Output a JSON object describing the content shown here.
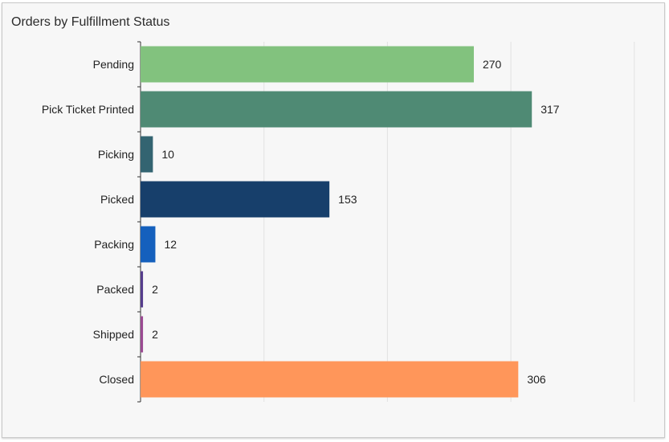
{
  "chart_data": {
    "type": "bar",
    "orientation": "horizontal",
    "title": "Orders by Fulfillment Status",
    "xlabel": "",
    "ylabel": "",
    "xlim": [
      0,
      400
    ],
    "grid": true,
    "legend": "none",
    "categories": [
      "Pending",
      "Pick Ticket Printed",
      "Picking",
      "Picked",
      "Packing",
      "Packed",
      "Shipped",
      "Closed"
    ],
    "values": [
      270,
      317,
      10,
      153,
      12,
      2,
      2,
      306
    ],
    "data_labels": [
      "270",
      "317",
      "10",
      "153",
      "12",
      "2",
      "2",
      "306"
    ],
    "colors": [
      "#82c27e",
      "#4f8a74",
      "#336471",
      "#173f6b",
      "#1560bd",
      "#553c8c",
      "#9a4a92",
      "#ff965a"
    ]
  }
}
